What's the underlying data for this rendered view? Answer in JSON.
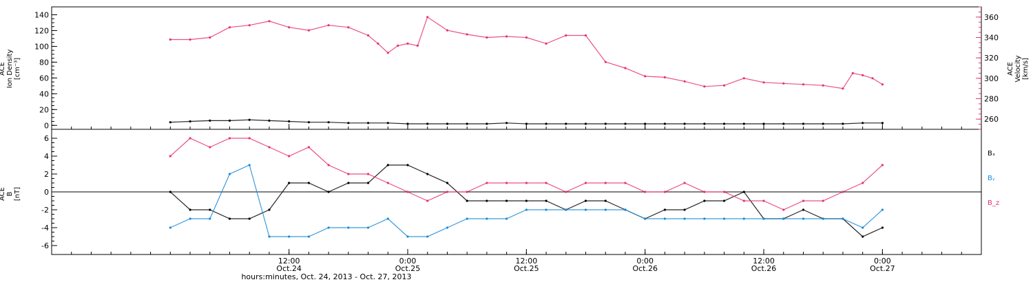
{
  "colors": {
    "axis": "#000000",
    "velocity": "#e8336a",
    "bx": "#000000",
    "by": "#1a8ad8",
    "bz": "#e8336a"
  },
  "chart_data": [
    {
      "type": "scatter",
      "panel": "top",
      "ylabel_left": [
        "ACE",
        "Ion Density",
        "[cm⁻³]"
      ],
      "ylabel_right": [
        "ACE",
        "Velocity",
        "[km/s]"
      ],
      "ylim_left": [
        -5,
        150
      ],
      "yticks_left": [
        0,
        20,
        40,
        60,
        80,
        100,
        120,
        140
      ],
      "ylim_right": [
        250,
        370
      ],
      "yticks_right": [
        260,
        280,
        300,
        320,
        340,
        360
      ],
      "series": [
        {
          "name": "Ion Density",
          "axis": "left",
          "x": [
            0,
            2,
            4,
            6,
            8,
            10,
            12,
            14,
            16,
            18,
            20,
            22,
            24,
            26,
            28,
            30,
            32,
            34,
            36,
            38,
            40,
            42,
            44,
            46,
            48,
            50,
            52,
            54,
            56,
            58,
            60,
            62,
            64,
            66,
            68,
            70,
            72
          ],
          "values": [
            4,
            5,
            6,
            6,
            7,
            6,
            5,
            4,
            4,
            3,
            3,
            3,
            2,
            2,
            2,
            2,
            2,
            3,
            2,
            2,
            2,
            2,
            2,
            2,
            2,
            2,
            2,
            2,
            2,
            2,
            2,
            2,
            2,
            2,
            2,
            3,
            3
          ]
        },
        {
          "name": "Velocity",
          "axis": "right",
          "x": [
            0,
            2,
            4,
            6,
            8,
            10,
            12,
            14,
            16,
            18,
            20,
            21,
            22,
            23,
            24,
            25,
            26,
            28,
            30,
            32,
            34,
            36,
            38,
            40,
            42,
            44,
            46,
            48,
            50,
            52,
            54,
            56,
            58,
            60,
            62,
            64,
            66,
            68,
            69,
            70,
            71,
            72
          ],
          "values": [
            338,
            338,
            340,
            350,
            352,
            356,
            350,
            347,
            352,
            350,
            342,
            334,
            325,
            332,
            334,
            332,
            360,
            347,
            343,
            340,
            341,
            340,
            334,
            342,
            342,
            316,
            310,
            302,
            301,
            297,
            292,
            293,
            300,
            296,
            295,
            294,
            293,
            290,
            305,
            303,
            300,
            294
          ]
        }
      ]
    },
    {
      "type": "scatter",
      "panel": "bottom",
      "ylabel_left": [
        "ACE",
        "B",
        "[nT]"
      ],
      "ylim": [
        -7,
        7
      ],
      "yticks": [
        -6,
        -4,
        -2,
        0,
        2,
        4,
        6
      ],
      "legend": [
        "Bₓ",
        "Bᵧ",
        "B_z"
      ],
      "legend_placement": "right",
      "series": [
        {
          "name": "Bₓ",
          "x": [
            0,
            2,
            4,
            6,
            8,
            10,
            12,
            14,
            16,
            18,
            20,
            22,
            24,
            26,
            28,
            30,
            32,
            34,
            36,
            38,
            40,
            42,
            44,
            46,
            48,
            50,
            52,
            54,
            56,
            58,
            60,
            62,
            64,
            66,
            68,
            70,
            72
          ],
          "values": [
            0,
            -2,
            -2,
            -3,
            -3,
            -2,
            1,
            1,
            0,
            1,
            1,
            3,
            3,
            2,
            1,
            -1,
            -1,
            -1,
            -1,
            -1,
            -2,
            -1,
            -1,
            -2,
            -3,
            -2,
            -2,
            -1,
            -1,
            0,
            -3,
            -3,
            -2,
            -3,
            -3,
            -5,
            -4
          ]
        },
        {
          "name": "Bᵧ",
          "x": [
            0,
            2,
            4,
            6,
            8,
            10,
            12,
            14,
            16,
            18,
            20,
            22,
            24,
            26,
            28,
            30,
            32,
            34,
            36,
            38,
            40,
            42,
            44,
            46,
            48,
            50,
            52,
            54,
            56,
            58,
            60,
            62,
            64,
            66,
            68,
            70,
            72
          ],
          "values": [
            -4,
            -3,
            -3,
            2,
            3,
            -5,
            -5,
            -5,
            -4,
            -4,
            -4,
            -3,
            -5,
            -5,
            -4,
            -3,
            -3,
            -3,
            -2,
            -2,
            -2,
            -2,
            -2,
            -2,
            -3,
            -3,
            -3,
            -3,
            -3,
            -3,
            -3,
            -3,
            -3,
            -3,
            -3,
            -4,
            -2
          ]
        },
        {
          "name": "B_z",
          "x": [
            0,
            2,
            4,
            6,
            8,
            10,
            12,
            14,
            16,
            18,
            20,
            22,
            24,
            26,
            28,
            30,
            32,
            34,
            36,
            38,
            40,
            42,
            44,
            46,
            48,
            50,
            52,
            54,
            56,
            58,
            60,
            62,
            64,
            66,
            68,
            70,
            72
          ],
          "values": [
            4,
            6,
            5,
            6,
            6,
            5,
            4,
            5,
            3,
            2,
            2,
            1,
            0,
            -1,
            0,
            0,
            1,
            1,
            1,
            1,
            0,
            1,
            1,
            1,
            0,
            0,
            1,
            0,
            0,
            -1,
            -1,
            -2,
            -1,
            -1,
            0,
            1,
            3
          ]
        }
      ]
    }
  ],
  "x_axis": {
    "range_hours": [
      -12,
      82
    ],
    "tick_hours": [
      12,
      24,
      36,
      48,
      60,
      72
    ],
    "tick_labels_top": [
      "12:00",
      "0:00",
      "12:00",
      "0:00",
      "12:00",
      "0:00"
    ],
    "tick_labels_bottom": [
      "Oct.24",
      "Oct.25",
      "Oct.25",
      "Oct.26",
      "Oct.26",
      "Oct.27"
    ],
    "xlabel": "hours:minutes, Oct. 24, 2013 - Oct. 27, 2013"
  }
}
